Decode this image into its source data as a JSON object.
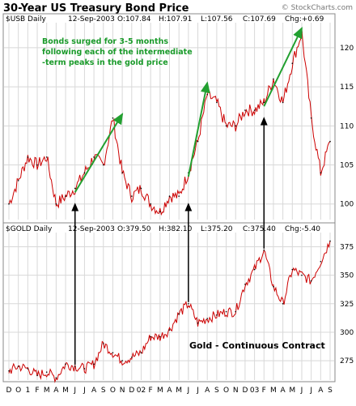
{
  "title": "30-Year US Treasury Bond Price",
  "watermark": "© StockCharts.com",
  "colors": {
    "price_line": "#cc0000",
    "arrow_green": "#22a030",
    "annotation_green": "#1a9a2a",
    "grid": "#d8d8d8",
    "panel_border": "#888888",
    "black": "#000000"
  },
  "top_panel": {
    "symbol": "$USB Daily",
    "date": "12-Sep-2003",
    "open": "O:107.84",
    "high": "H:107.91",
    "low": "L:107.56",
    "close": "C:107.69",
    "change": "Chg:+0.69",
    "annotation_lines": [
      "Bonds surged for 3-5 months",
      "following each of the intermediate",
      "-term peaks in the gold price"
    ]
  },
  "bottom_panel": {
    "symbol": "$GOLD Daily",
    "date": "12-Sep-2003",
    "open": "O:379.50",
    "high": "H:382.10",
    "low": "L:375.20",
    "close": "C:375.40",
    "change": "Chg:-5.40",
    "caption": "Gold - Continuous Contract"
  },
  "chart_data": [
    {
      "type": "line",
      "title": "30-Year US Treasury Bond Price",
      "series_name": "$USB Daily",
      "ylim": [
        98,
        123
      ],
      "yticks": [
        100,
        105,
        110,
        115,
        120
      ],
      "x": [
        "Nov-2000",
        "Dec-2000",
        "Jan-2001",
        "Feb-2001",
        "Mar-2001",
        "Apr-2001",
        "May-2001",
        "Jun-2001",
        "Jul-2001",
        "Aug-2001",
        "Sep-2001",
        "Oct-2001",
        "Nov-2001",
        "Dec-2001",
        "Jan-2002",
        "Feb-2002",
        "Mar-2002",
        "Apr-2002",
        "May-2002",
        "Jun-2002",
        "Jul-2002",
        "Aug-2002",
        "Sep-2002",
        "Oct-2002",
        "Nov-2002",
        "Dec-2002",
        "Jan-2003",
        "Feb-2003",
        "Mar-2003",
        "Apr-2003",
        "May-2003",
        "Jun-2003",
        "Jul-2003",
        "Aug-2003",
        "Sep-2003"
      ],
      "values": [
        100,
        103,
        106,
        105,
        106,
        100,
        101,
        102,
        104,
        106,
        105,
        111,
        104,
        101,
        102,
        100,
        99,
        101,
        101,
        104,
        108,
        114,
        113,
        110,
        110,
        112,
        112,
        113,
        116,
        113,
        118,
        122,
        111,
        104,
        108
      ],
      "grid": true
    },
    {
      "type": "line",
      "title": "Gold - Continuous Contract",
      "series_name": "$GOLD Daily",
      "ylim": [
        258,
        386
      ],
      "yticks": [
        275,
        300,
        325,
        350,
        375
      ],
      "x": [
        "Nov-2000",
        "Dec-2000",
        "Jan-2001",
        "Feb-2001",
        "Mar-2001",
        "Apr-2001",
        "May-2001",
        "Jun-2001",
        "Jul-2001",
        "Aug-2001",
        "Sep-2001",
        "Oct-2001",
        "Nov-2001",
        "Dec-2001",
        "Jan-2002",
        "Feb-2002",
        "Mar-2002",
        "Apr-2002",
        "May-2002",
        "Jun-2002",
        "Jul-2002",
        "Aug-2002",
        "Sep-2002",
        "Oct-2002",
        "Nov-2002",
        "Dec-2002",
        "Jan-2003",
        "Feb-2003",
        "Mar-2003",
        "Apr-2003",
        "May-2003",
        "Jun-2003",
        "Jul-2003",
        "Aug-2003",
        "Sep-2003"
      ],
      "values": [
        266,
        270,
        268,
        262,
        265,
        260,
        272,
        270,
        268,
        272,
        290,
        282,
        275,
        278,
        282,
        296,
        296,
        302,
        316,
        325,
        308,
        312,
        315,
        318,
        318,
        342,
        355,
        372,
        340,
        325,
        355,
        350,
        345,
        362,
        380
      ],
      "grid": true
    }
  ],
  "x_axis": {
    "labels": [
      "D",
      "O",
      "1",
      "F",
      "M",
      "A",
      "M",
      "J",
      "J",
      "A",
      "S",
      "O",
      "N",
      "D",
      "02",
      "F",
      "M",
      "A",
      "M",
      "J",
      "J",
      "A",
      "S",
      "O",
      "N",
      "D",
      "03",
      "F",
      "M",
      "A",
      "M",
      "J",
      "J",
      "A",
      "S"
    ]
  },
  "peak_markers": [
    "Jun-2001",
    "Jun-2002",
    "Feb-2003"
  ],
  "bond_surges": [
    {
      "from": "Jun-2001",
      "to": "Nov-2001",
      "from_value": 101.5,
      "to_value": 111.5
    },
    {
      "from": "Jun-2002",
      "to": "Aug-2002",
      "from_value": 103.5,
      "to_value": 115.5
    },
    {
      "from": "Feb-2003",
      "to": "Jun-2003",
      "from_value": 112.5,
      "to_value": 122.5
    }
  ]
}
